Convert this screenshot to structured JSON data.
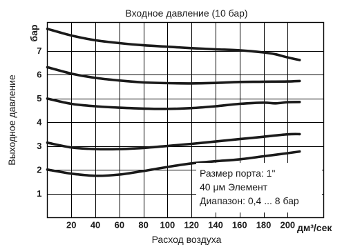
{
  "chart_data": {
    "type": "line",
    "title": "Входное давление (10 бар)",
    "xlabel": "Расход воздуха",
    "ylabel": "Выходное давление",
    "x_unit": "дм³/сек",
    "y_unit": "бар",
    "xlim": [
      0,
      230
    ],
    "ylim": [
      0,
      8.2
    ],
    "x_ticks": [
      "20",
      "40",
      "60",
      "80",
      "100",
      "120",
      "140",
      "160",
      "180",
      "200"
    ],
    "y_ticks": [
      "1",
      "2",
      "3",
      "4",
      "5",
      "6",
      "7"
    ],
    "grid": true,
    "annotation": [
      "Размер порта: 1\"",
      "40 μм Элемент",
      "Диапазон: 0,4 ... 8 бар"
    ],
    "series": [
      {
        "x": [
          0,
          20,
          40,
          60,
          80,
          100,
          120,
          140,
          160,
          180,
          190,
          200,
          210
        ],
        "y": [
          7.93,
          7.65,
          7.45,
          7.33,
          7.24,
          7.18,
          7.12,
          7.07,
          7.03,
          6.94,
          6.86,
          6.73,
          6.62
        ]
      },
      {
        "x": [
          0,
          20,
          40,
          60,
          80,
          100,
          120,
          140,
          160,
          180,
          200,
          210
        ],
        "y": [
          6.32,
          6.05,
          5.87,
          5.76,
          5.68,
          5.65,
          5.64,
          5.66,
          5.7,
          5.71,
          5.72,
          5.74
        ]
      },
      {
        "x": [
          0,
          20,
          40,
          60,
          80,
          100,
          120,
          140,
          160,
          180,
          190,
          200,
          210
        ],
        "y": [
          5.0,
          4.78,
          4.68,
          4.62,
          4.58,
          4.57,
          4.6,
          4.68,
          4.78,
          4.83,
          4.8,
          4.85,
          4.86
        ]
      },
      {
        "x": [
          0,
          20,
          40,
          60,
          80,
          100,
          120,
          140,
          160,
          180,
          200,
          210
        ],
        "y": [
          3.15,
          2.95,
          2.88,
          2.88,
          2.93,
          3.01,
          3.1,
          3.2,
          3.3,
          3.4,
          3.5,
          3.51
        ]
      },
      {
        "x": [
          0,
          20,
          40,
          60,
          80,
          100,
          120,
          140,
          160,
          180,
          200,
          210
        ],
        "y": [
          2.02,
          1.85,
          1.76,
          1.81,
          1.96,
          2.13,
          2.28,
          2.37,
          2.45,
          2.58,
          2.71,
          2.78
        ]
      }
    ]
  }
}
